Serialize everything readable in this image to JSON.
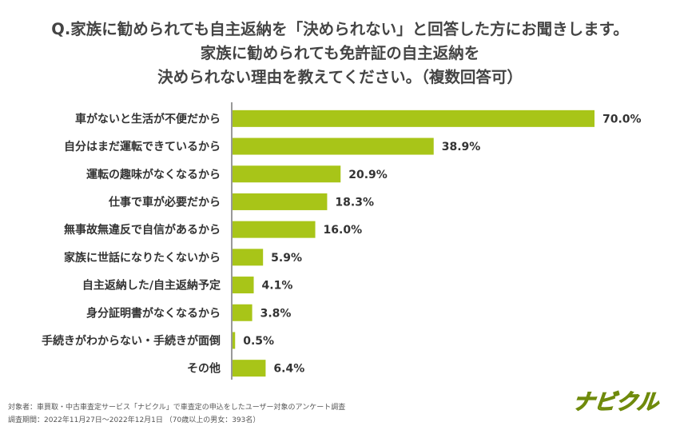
{
  "header": {
    "title_lines": [
      "Q.家族に勧められても自主返納を「決められない」と回答した方にお聞きします。",
      "家族に勧められても免許証の自主返納を",
      "決められない理由を教えてください。（複数回答可）"
    ]
  },
  "chart_data": {
    "type": "bar",
    "orientation": "horizontal",
    "categories": [
      "車がないと生活が不便だから",
      "自分はまだ運転できているから",
      "運転の趣味がなくなるから",
      "仕事で車が必要だから",
      "無事故無違反で自信があるから",
      "家族に世話になりたくないから",
      "自主返納した/自主返納予定",
      "身分証明書がなくなるから",
      "手続きがわからない・手続きが面倒",
      "その他"
    ],
    "values": [
      70.0,
      38.9,
      20.9,
      18.3,
      16.0,
      5.9,
      4.1,
      3.8,
      0.5,
      6.4
    ],
    "value_labels": [
      "70.0%",
      "38.9%",
      "20.9%",
      "18.3%",
      "16.0%",
      "5.9%",
      "4.1%",
      "3.8%",
      "0.5%",
      "6.4%"
    ],
    "unit": "%",
    "xlim": [
      0,
      70
    ],
    "bar_color": "#a8c518",
    "axis_color": "#999999"
  },
  "footer": {
    "line1": "対象者：車買取・中古車査定サービス「ナビクル」で車査定の申込をしたユーザー対象のアンケート調査",
    "line2": "調査期間：2022年11月27日～2022年12月1日 （70歳以上の男女：393名）"
  },
  "logo": {
    "text": "ナビクル",
    "color": "#a8c518"
  }
}
